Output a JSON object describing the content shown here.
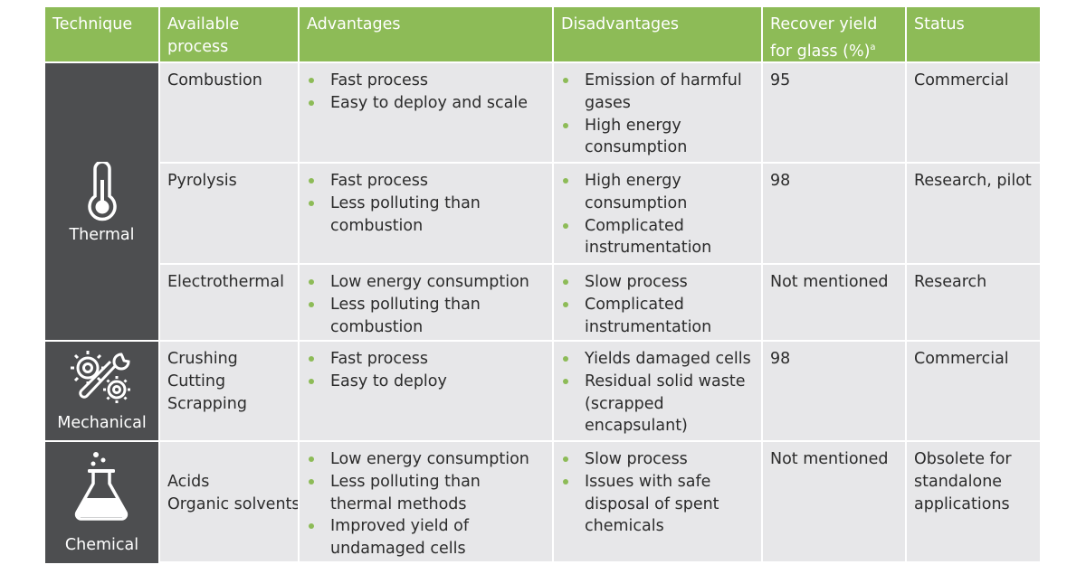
{
  "headers": [
    "Technique",
    "Available process",
    "Advantages",
    "Disadvantages",
    "Recover yield for glass (%)",
    "Status"
  ],
  "header_superscript": "a",
  "techniques": [
    {
      "label": "Thermal",
      "icon": "thermometer-icon"
    },
    {
      "label": "Mechanical",
      "icon": "gears-wrench-icon"
    },
    {
      "label": "Chemical",
      "icon": "flask-icon"
    }
  ],
  "rows": [
    {
      "process": [
        "Combustion"
      ],
      "advantages": [
        "Fast process",
        "Easy to deploy and scale"
      ],
      "disadvantages": [
        "Emission of harmful gases",
        "High energy consumption"
      ],
      "yield": "95",
      "status": "Commercial"
    },
    {
      "process": [
        "Pyrolysis"
      ],
      "advantages": [
        "Fast process",
        "Less polluting than combustion"
      ],
      "disadvantages": [
        "High energy consumption",
        "Complicated instrumentation"
      ],
      "yield": "98",
      "status": "Research, pilot"
    },
    {
      "process": [
        "Electrothermal"
      ],
      "advantages": [
        "Low energy consumption",
        "Less polluting than combustion"
      ],
      "disadvantages": [
        "Slow process",
        "Complicated instrumentation"
      ],
      "yield": "Not mentioned",
      "status": "Research"
    },
    {
      "process": [
        "Crushing",
        "Cutting",
        "Scrapping"
      ],
      "advantages": [
        "Fast process",
        "Easy to deploy"
      ],
      "disadvantages": [
        "Yields damaged cells",
        "Residual solid waste (scrapped encapsulant)"
      ],
      "yield": "98",
      "status": "Commercial"
    },
    {
      "process": [
        "Acids",
        "Organic solvents"
      ],
      "advantages": [
        "Low energy consumption",
        "Less polluting than thermal methods",
        "Improved yield of undamaged cells"
      ],
      "disadvantages": [
        "Slow process",
        "Issues with safe disposal of spent chemicals"
      ],
      "yield": "Not mentioned",
      "status": "Obsolete for standalone applications"
    }
  ]
}
